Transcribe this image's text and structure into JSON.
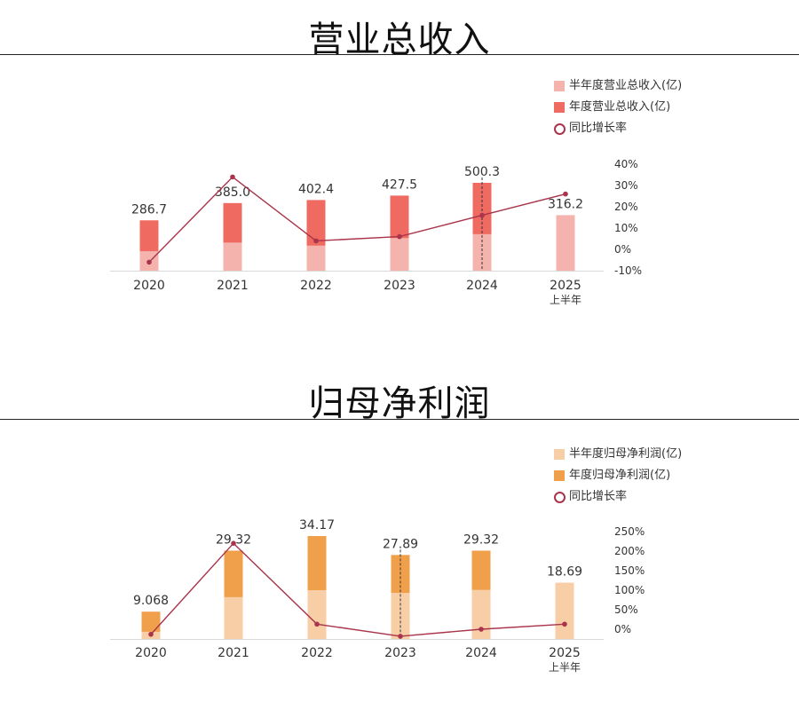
{
  "chart_data": [
    {
      "type": "bar",
      "title": "营业总收入",
      "categories": [
        "2020",
        "2021",
        "2022",
        "2023",
        "2024",
        "2025\n上半年"
      ],
      "series": [
        {
          "name": "半年度营业总收入(亿)",
          "values": [
            111,
            160,
            143,
            186,
            208,
            316.2
          ],
          "color": "#f4b3ad"
        },
        {
          "name": "年度营业总收入(亿)",
          "values": [
            286.7,
            385.0,
            402.4,
            427.5,
            500.3,
            null
          ],
          "color": "#ef6a60"
        },
        {
          "name": "同比增长率",
          "values": [
            -6,
            34,
            4,
            6,
            16,
            26
          ],
          "color": "#a9344b"
        }
      ],
      "data_labels": [
        "286.7",
        "385.0",
        "402.4",
        "427.5",
        "500.3",
        "316.2"
      ],
      "y_right_ticks": [
        "40%",
        "30%",
        "20%",
        "10%",
        "0%",
        "-10%"
      ],
      "ylim_bars": [
        0,
        500.3
      ],
      "ylim_right": [
        -10,
        40
      ],
      "highlight_index": 4,
      "legend_position": "top-right"
    },
    {
      "type": "bar",
      "title": "归母净利润",
      "categories": [
        "2020",
        "2021",
        "2022",
        "2023",
        "2024",
        "2025\n上半年"
      ],
      "series": [
        {
          "name": "半年度归母净利润(亿)",
          "values": [
            2.4,
            13.9,
            16.2,
            15.3,
            16.3,
            18.69
          ],
          "color": "#f8cea6"
        },
        {
          "name": "年度归母净利润(亿)",
          "values": [
            9.068,
            29.32,
            34.17,
            27.89,
            29.32,
            null
          ],
          "color": "#f0a04b"
        },
        {
          "name": "同比增长率",
          "values": [
            -13,
            220,
            13,
            -18,
            0,
            13
          ],
          "color": "#a9344b"
        }
      ],
      "data_labels": [
        "9.068",
        "29.32",
        "34.17",
        "27.89",
        "29.32",
        "18.69"
      ],
      "y_right_ticks": [
        "250%",
        "200%",
        "150%",
        "100%",
        "50%",
        "0%"
      ],
      "ylim_bars": [
        0,
        34.17
      ],
      "ylim_right": [
        0,
        250
      ],
      "highlight_index": 3,
      "legend_position": "top-right"
    }
  ]
}
